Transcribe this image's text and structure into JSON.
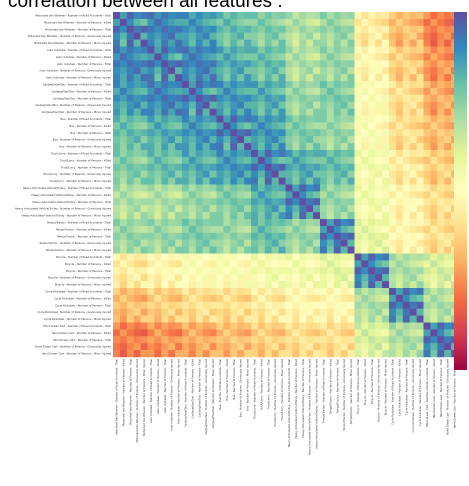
{
  "chart_data": {
    "type": "heatmap",
    "title": "correlation between all features :",
    "labels": [
      "Motorised two Wheeler - Number of Road Accidents - Total",
      "Motorised two Wheeler - Number of Persons - Killed",
      "Motorised two Wheeler - Number of Persons - Total",
      "Motorised two Wheeler - Number of Persons - Grievously Injured",
      "Motorised two Wheeler - Number of Persons - Minor Injured",
      "Auto rickshaw - Number of Road Accidents - Total",
      "Auto rickshaw - Number of Persons - Killed",
      "Auto rickshaw - Number of Persons - Total",
      "Auto rickshaw - Number of Persons - Grievously Injured",
      "Auto rickshaw - Number of Persons - Minor Injured",
      "Car/Jeep/Van/Taxi - Number of Road Accidents - Total",
      "Car/Jeep/Van/Taxi - Number of Persons - Killed",
      "Car/Jeep/Van/Taxi - Number of Persons - Total",
      "Car/Jeep/Van/Taxi - Number of Persons - Grievously Injured",
      "Car/Jeep/Van/Taxi - Number of Persons - Minor Injured",
      "Bus - Number of Road Accidents - Total",
      "Bus - Number of Persons - Killed",
      "Bus - Number of Persons - Total",
      "Bus - Number of Persons - Grievously Injured",
      "Bus - Number of Persons - Minor Injured",
      "Truck/Lorry - Number of Road Accidents - Total",
      "Truck/Lorry - Number of Persons - Killed",
      "Truck/Lorry - Number of Persons - Total",
      "Truck/Lorry - Number of Persons - Grievously Injured",
      "Truck/Lorry - Number of Persons - Minor Injured",
      "Heavy Articulated Vehicle/Trolley - Number of Road Accidents - Total",
      "Heavy Articulated Vehicle/Trolley - Number of Persons - Killed",
      "Heavy Articulated Vehicle/Trolley - Number of Persons - Total",
      "Heavy Articulated Vehicle/Trolley - Number of Persons - Grievously Injured",
      "Heavy Articulated Vehicle/Trolley - Number of Persons - Minor Injured",
      "Tempo/Tractor - Number of Road Accidents - Total",
      "Tempo/Tractor - Number of Persons - Killed",
      "Tempo/Tractor - Number of Persons - Total",
      "Tempo/Tractor - Number of Persons - Grievously Injured",
      "Tempo/Tractor - Number of Persons - Minor Injured",
      "Bicycle - Number of Road Accidents - Total",
      "Bicycle - Number of Persons - Killed",
      "Bicycle - Number of Persons - Total",
      "Bicycle - Number of Persons - Grievously Injured",
      "Bicycle - Number of Persons - Minor Injured",
      "Cycle Rickshaw - Number of Road Accidents - Total",
      "Cycle Rickshaw - Number of Persons - Killed",
      "Cycle Rickshaw - Number of Persons - Total",
      "Cycle Rickshaw - Number of Persons - Grievously Injured",
      "Cycle Rickshaw - Number of Persons - Minor Injured",
      "Hand Drawn Cart - Number of Road Accidents - Total",
      "Hand Drawn Cart - Number of Persons - Killed",
      "Hand Drawn Cart - Number of Persons - Total",
      "Hand Drawn Cart - Number of Persons - Grievously Injured",
      "Hand Drawn Cart - Number of Persons - Minor Injured"
    ],
    "colormap": "Spectral",
    "vmin": -0.4,
    "vmax": 1.0,
    "colorbar_ticks": [],
    "block_groups": [
      {
        "name": "Motorised two Wheeler",
        "rows": [
          0,
          5
        ]
      },
      {
        "name": "Auto rickshaw",
        "rows": [
          5,
          10
        ]
      },
      {
        "name": "Car/Jeep/Van/Taxi",
        "rows": [
          10,
          15
        ]
      },
      {
        "name": "Bus",
        "rows": [
          15,
          20
        ]
      },
      {
        "name": "Truck/Lorry",
        "rows": [
          20,
          25
        ]
      },
      {
        "name": "Heavy Articulated Vehicle/Trolley",
        "rows": [
          25,
          30
        ]
      },
      {
        "name": "Tempo/Tractor",
        "rows": [
          30,
          35
        ]
      },
      {
        "name": "Bicycle",
        "rows": [
          35,
          40
        ]
      },
      {
        "name": "Cycle Rickshaw",
        "rows": [
          40,
          45
        ]
      },
      {
        "name": "Hand Drawn Cart",
        "rows": [
          45,
          50
        ]
      }
    ],
    "group_correlation_matrix": [
      [
        1.0,
        0.85,
        0.8,
        0.7,
        0.65,
        0.55,
        0.6,
        0.2,
        0.05,
        -0.1
      ],
      [
        0.85,
        1.0,
        0.85,
        0.75,
        0.7,
        0.55,
        0.6,
        0.25,
        0.1,
        -0.05
      ],
      [
        0.8,
        0.85,
        1.0,
        0.8,
        0.75,
        0.6,
        0.65,
        0.3,
        0.15,
        0.0
      ],
      [
        0.7,
        0.75,
        0.8,
        1.0,
        0.8,
        0.65,
        0.6,
        0.3,
        0.15,
        0.05
      ],
      [
        0.65,
        0.7,
        0.75,
        0.8,
        1.0,
        0.75,
        0.7,
        0.35,
        0.2,
        0.1
      ],
      [
        0.55,
        0.55,
        0.6,
        0.65,
        0.75,
        1.0,
        0.6,
        0.35,
        0.25,
        0.15
      ],
      [
        0.6,
        0.6,
        0.65,
        0.6,
        0.7,
        0.6,
        1.0,
        0.4,
        0.25,
        0.15
      ],
      [
        0.2,
        0.25,
        0.3,
        0.3,
        0.35,
        0.35,
        0.4,
        1.0,
        0.55,
        0.45
      ],
      [
        0.05,
        0.1,
        0.15,
        0.15,
        0.2,
        0.25,
        0.25,
        0.55,
        1.0,
        0.55
      ],
      [
        -0.1,
        -0.05,
        0.0,
        0.05,
        0.1,
        0.15,
        0.15,
        0.45,
        0.55,
        1.0
      ]
    ],
    "within_group_correlation": [
      [
        1.0,
        0.8,
        0.95,
        0.85,
        0.9
      ],
      [
        0.8,
        1.0,
        0.85,
        0.75,
        0.7
      ],
      [
        0.95,
        0.85,
        1.0,
        0.9,
        0.95
      ],
      [
        0.85,
        0.75,
        0.9,
        1.0,
        0.75
      ],
      [
        0.9,
        0.7,
        0.95,
        0.75,
        1.0
      ]
    ],
    "xlabel": "",
    "ylabel": ""
  }
}
